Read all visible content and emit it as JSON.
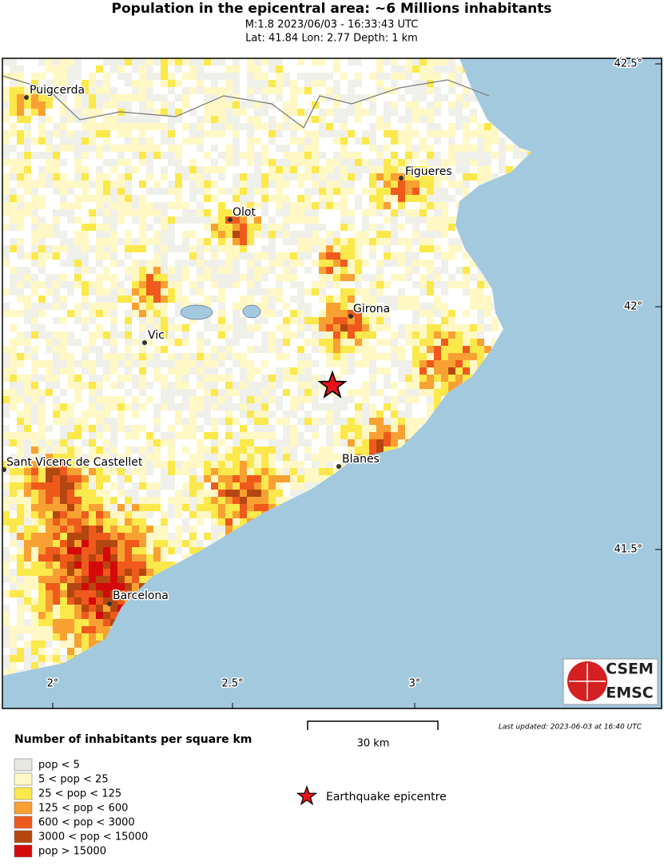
{
  "header": {
    "title": "Population in the epicentral area: ~6 Millions inhabitants",
    "line1": "M:1.8 2023/06/03 - 16:33:43 UTC",
    "line2": "Lat: 41.84 Lon: 2.77 Depth: 1 km"
  },
  "map": {
    "lon_ticks": [
      "2°",
      "2.5°",
      "3°"
    ],
    "lat_ticks": [
      "42.5°",
      "42°",
      "41.5°"
    ],
    "cities": [
      "Puigcerda",
      "Figueres",
      "Olot",
      "Girona",
      "Vic",
      "Blanes",
      "Sant Vicenc de Castellet",
      "Barcelona"
    ],
    "logo": [
      "CSEM",
      "EMSC"
    ]
  },
  "legend": {
    "title": "Number of inhabitants per square km",
    "items": [
      {
        "label": "pop < 5",
        "color": "#e8e8e2"
      },
      {
        "label": "5 < pop < 25",
        "color": "#fff8c4"
      },
      {
        "label": "25 < pop < 125",
        "color": "#fbe84a"
      },
      {
        "label": "125 < pop < 600",
        "color": "#f8a132"
      },
      {
        "label": "600 < pop < 3000",
        "color": "#ef5a1c"
      },
      {
        "label": "3000 < pop < 15000",
        "color": "#b4470f"
      },
      {
        "label": "pop > 15000",
        "color": "#d40a0a"
      }
    ],
    "epicentre": "Earthquake epicentre"
  },
  "scale": "30 km",
  "updated": "Last updated: 2023-06-03 at 16:40 UTC"
}
